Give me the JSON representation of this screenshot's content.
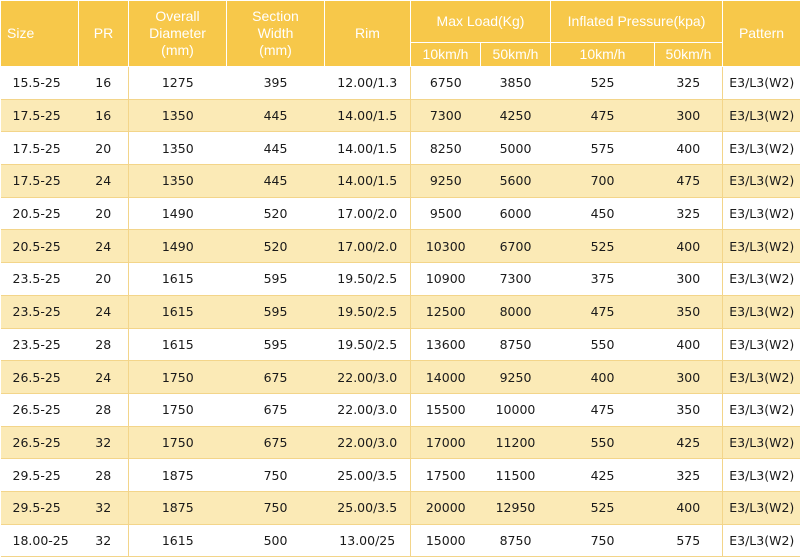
{
  "headers": {
    "size": "Size",
    "pr": "PR",
    "overall_diameter": [
      "Overall",
      "Diameter",
      "(mm)"
    ],
    "section_width": [
      "Section",
      "Width",
      "(mm)"
    ],
    "rim": "Rim",
    "max_load": "Max Load(Kg)",
    "inflated_pressure": "Inflated Pressure(kpa)",
    "pattern": "Pattern",
    "speed_low": "10km/h",
    "speed_high": "50km/h"
  },
  "rows": [
    [
      "15.5-25",
      "16",
      "1275",
      "395",
      "12.00/1.3",
      "6750",
      "3850",
      "525",
      "325",
      "E3/L3(W2)"
    ],
    [
      "17.5-25",
      "16",
      "1350",
      "445",
      "14.00/1.5",
      "7300",
      "4250",
      "475",
      "300",
      "E3/L3(W2)"
    ],
    [
      "17.5-25",
      "20",
      "1350",
      "445",
      "14.00/1.5",
      "8250",
      "5000",
      "575",
      "400",
      "E3/L3(W2)"
    ],
    [
      "17.5-25",
      "24",
      "1350",
      "445",
      "14.00/1.5",
      "9250",
      "5600",
      "700",
      "475",
      "E3/L3(W2)"
    ],
    [
      "20.5-25",
      "20",
      "1490",
      "520",
      "17.00/2.0",
      "9500",
      "6000",
      "450",
      "325",
      "E3/L3(W2)"
    ],
    [
      "20.5-25",
      "24",
      "1490",
      "520",
      "17.00/2.0",
      "10300",
      "6700",
      "525",
      "400",
      "E3/L3(W2)"
    ],
    [
      "23.5-25",
      "20",
      "1615",
      "595",
      "19.50/2.5",
      "10900",
      "7300",
      "375",
      "300",
      "E3/L3(W2)"
    ],
    [
      "23.5-25",
      "24",
      "1615",
      "595",
      "19.50/2.5",
      "12500",
      "8000",
      "475",
      "350",
      "E3/L3(W2)"
    ],
    [
      "23.5-25",
      "28",
      "1615",
      "595",
      "19.50/2.5",
      "13600",
      "8750",
      "550",
      "400",
      "E3/L3(W2)"
    ],
    [
      "26.5-25",
      "24",
      "1750",
      "675",
      "22.00/3.0",
      "14000",
      "9250",
      "400",
      "300",
      "E3/L3(W2)"
    ],
    [
      "26.5-25",
      "28",
      "1750",
      "675",
      "22.00/3.0",
      "15500",
      "10000",
      "475",
      "350",
      "E3/L3(W2)"
    ],
    [
      "26.5-25",
      "32",
      "1750",
      "675",
      "22.00/3.0",
      "17000",
      "11200",
      "550",
      "425",
      "E3/L3(W2)"
    ],
    [
      "29.5-25",
      "28",
      "1875",
      "750",
      "25.00/3.5",
      "17500",
      "11500",
      "425",
      "325",
      "E3/L3(W2)"
    ],
    [
      "29.5-25",
      "32",
      "1875",
      "750",
      "25.00/3.5",
      "20000",
      "12950",
      "525",
      "400",
      "E3/L3(W2)"
    ],
    [
      "18.00-25",
      "32",
      "1615",
      "500",
      "13.00/25",
      "15000",
      "8750",
      "750",
      "575",
      "E3/L3(W2)"
    ]
  ]
}
